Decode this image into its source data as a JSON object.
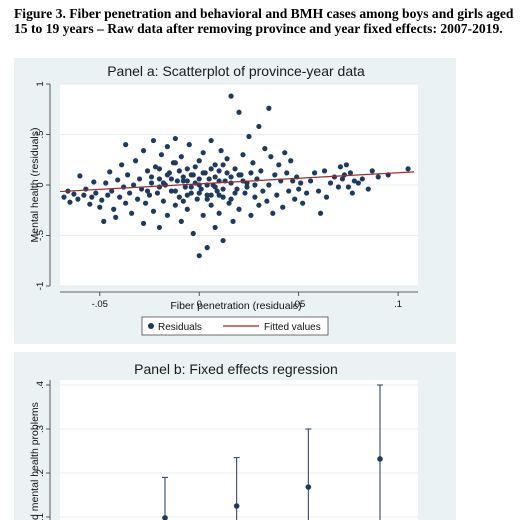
{
  "caption": "Figure 3. Fiber penetration and behavioral and BMH cases among boys and girls aged 15 to 19 years – Raw data after removing province and year fixed effects: 2007-2019.",
  "chart_data": [
    {
      "type": "scatter",
      "title": "Panel a: Scatterplot of province-year data",
      "xlabel": "Fiber penetration (residuals)",
      "ylabel": "Mental health (residuals)",
      "xlim": [
        -0.07,
        0.11
      ],
      "ylim": [
        -1,
        1
      ],
      "xticks": [
        -0.05,
        0,
        0.05,
        0.1
      ],
      "xtick_labels": [
        "-.05",
        "0",
        ".05",
        ".1"
      ],
      "yticks": [
        -1,
        -0.5,
        0,
        0.5,
        1
      ],
      "ytick_labels": [
        "-1",
        "-.5",
        "0",
        ".5",
        "1"
      ],
      "grid": "horizontal",
      "legend_position": "bottom",
      "series": [
        {
          "name": "Residuals",
          "marker": "dot",
          "color": "#1f3a5f",
          "points": [
            [
              -0.068,
              -0.12
            ],
            [
              -0.066,
              -0.06
            ],
            [
              -0.065,
              -0.17
            ],
            [
              -0.063,
              -0.09
            ],
            [
              -0.061,
              -0.14
            ],
            [
              -0.06,
              0.09
            ],
            [
              -0.058,
              -0.1
            ],
            [
              -0.057,
              -0.04
            ],
            [
              -0.055,
              -0.19
            ],
            [
              -0.054,
              -0.12
            ],
            [
              -0.053,
              0.03
            ],
            [
              -0.052,
              -0.08
            ],
            [
              -0.05,
              -0.22
            ],
            [
              -0.049,
              -0.15
            ],
            [
              -0.048,
              -0.36
            ],
            [
              -0.047,
              0.02
            ],
            [
              -0.046,
              -0.1
            ],
            [
              -0.045,
              0.13
            ],
            [
              -0.044,
              -0.06
            ],
            [
              -0.043,
              -0.24
            ],
            [
              -0.042,
              -0.32
            ],
            [
              -0.041,
              0.05
            ],
            [
              -0.04,
              -0.12
            ],
            [
              -0.039,
              0.2
            ],
            [
              -0.038,
              -0.02
            ],
            [
              -0.037,
              0.4
            ],
            [
              -0.037,
              -0.18
            ],
            [
              -0.036,
              0.1
            ],
            [
              -0.035,
              -0.08
            ],
            [
              -0.034,
              -0.28
            ],
            [
              -0.033,
              0.0
            ],
            [
              -0.032,
              0.24
            ],
            [
              -0.031,
              -0.14
            ],
            [
              -0.03,
              0.06
            ],
            [
              -0.029,
              -0.04
            ],
            [
              -0.028,
              -0.38
            ],
            [
              -0.028,
              0.34
            ],
            [
              -0.027,
              -0.18
            ],
            [
              -0.026,
              0.14
            ],
            [
              -0.025,
              -0.1
            ],
            [
              -0.024,
              0.02
            ],
            [
              -0.023,
              -0.26
            ],
            [
              -0.023,
              0.44
            ],
            [
              -0.022,
              0.18
            ],
            [
              -0.021,
              -0.08
            ],
            [
              -0.02,
              0.06
            ],
            [
              -0.02,
              -0.42
            ],
            [
              -0.019,
              0.3
            ],
            [
              -0.018,
              -0.16
            ],
            [
              -0.017,
              0.0
            ],
            [
              -0.016,
              0.38
            ],
            [
              -0.016,
              -0.3
            ],
            [
              -0.015,
              0.12
            ],
            [
              -0.014,
              -0.06
            ],
            [
              -0.013,
              0.22
            ],
            [
              -0.012,
              -0.2
            ],
            [
              -0.012,
              0.46
            ],
            [
              -0.011,
              0.04
            ],
            [
              -0.01,
              -0.12
            ],
            [
              -0.009,
              0.28
            ],
            [
              -0.009,
              -0.36
            ],
            [
              -0.008,
              0.08
            ],
            [
              -0.007,
              -0.02
            ],
            [
              -0.006,
              0.16
            ],
            [
              -0.006,
              -0.24
            ],
            [
              -0.005,
              0.4
            ],
            [
              -0.004,
              -0.08
            ],
            [
              -0.003,
              0.1
            ],
            [
              -0.003,
              -0.48
            ],
            [
              -0.002,
              0.02
            ],
            [
              -0.001,
              -0.14
            ],
            [
              0.0,
              0.24
            ],
            [
              0.0,
              -0.7
            ],
            [
              0.001,
              -0.04
            ],
            [
              0.002,
              0.32
            ],
            [
              0.002,
              -0.3
            ],
            [
              0.003,
              0.12
            ],
            [
              0.004,
              -0.1
            ],
            [
              0.004,
              -0.62
            ],
            [
              0.005,
              0.06
            ],
            [
              0.006,
              0.44
            ],
            [
              0.006,
              -0.2
            ],
            [
              0.007,
              0.0
            ],
            [
              0.008,
              0.2
            ],
            [
              0.008,
              -0.42
            ],
            [
              0.009,
              -0.06
            ],
            [
              0.01,
              0.14
            ],
            [
              0.01,
              -0.28
            ],
            [
              0.011,
              0.34
            ],
            [
              0.012,
              -0.12
            ],
            [
              0.012,
              -0.55
            ],
            [
              0.013,
              0.04
            ],
            [
              0.014,
              0.26
            ],
            [
              0.015,
              -0.18
            ],
            [
              0.016,
              0.08
            ],
            [
              0.016,
              0.88
            ],
            [
              0.017,
              -0.36
            ],
            [
              0.018,
              0.16
            ],
            [
              0.019,
              -0.04
            ],
            [
              0.02,
              0.72
            ],
            [
              0.02,
              -0.24
            ],
            [
              0.021,
              0.1
            ],
            [
              0.022,
              0.3
            ],
            [
              0.023,
              -0.08
            ],
            [
              0.024,
              0.02
            ],
            [
              0.025,
              0.48
            ],
            [
              0.026,
              -0.3
            ],
            [
              0.027,
              0.22
            ],
            [
              0.028,
              -0.12
            ],
            [
              0.029,
              0.06
            ],
            [
              0.03,
              0.58
            ],
            [
              0.03,
              -0.2
            ],
            [
              0.031,
              0.14
            ],
            [
              0.032,
              -0.06
            ],
            [
              0.033,
              0.36
            ],
            [
              0.034,
              -0.16
            ],
            [
              0.035,
              0.76
            ],
            [
              0.035,
              0.0
            ],
            [
              0.036,
              0.28
            ],
            [
              0.037,
              -0.28
            ],
            [
              0.038,
              0.1
            ],
            [
              0.039,
              -0.1
            ],
            [
              0.04,
              0.2
            ],
            [
              0.041,
              0.04
            ],
            [
              0.042,
              -0.22
            ],
            [
              0.043,
              0.32
            ],
            [
              0.044,
              0.12
            ],
            [
              0.045,
              -0.06
            ],
            [
              0.046,
              0.24
            ],
            [
              0.047,
              0.04
            ],
            [
              0.048,
              -0.14
            ],
            [
              0.049,
              0.08
            ],
            [
              0.05,
              -0.04
            ],
            [
              0.051,
              0.02
            ],
            [
              0.052,
              -0.18
            ],
            [
              0.054,
              -0.08
            ],
            [
              0.056,
              0.04
            ],
            [
              0.058,
              0.12
            ],
            [
              0.06,
              -0.06
            ],
            [
              0.061,
              -0.28
            ],
            [
              0.063,
              0.14
            ],
            [
              0.064,
              -0.12
            ],
            [
              0.066,
              0.02
            ],
            [
              0.068,
              0.08
            ],
            [
              0.07,
              -0.02
            ],
            [
              0.071,
              0.18
            ],
            [
              0.072,
              0.06
            ],
            [
              0.073,
              0.1
            ],
            [
              0.074,
              0.2
            ],
            [
              0.075,
              -0.02
            ],
            [
              0.076,
              0.12
            ],
            [
              0.077,
              -0.08
            ],
            [
              0.078,
              0.04
            ],
            [
              0.08,
              0.02
            ],
            [
              0.082,
              0.06
            ],
            [
              0.085,
              -0.04
            ],
            [
              0.087,
              0.14
            ],
            [
              0.09,
              0.08
            ],
            [
              0.095,
              0.1
            ],
            [
              0.105,
              0.16
            ]
          ],
          "cluster": [
            [
              -0.008,
              0.04
            ],
            [
              -0.004,
              -0.02
            ],
            [
              0.0,
              0.06
            ],
            [
              0.004,
              0.0
            ],
            [
              0.008,
              0.08
            ],
            [
              0.012,
              -0.04
            ],
            [
              0.016,
              0.02
            ],
            [
              -0.012,
              -0.06
            ],
            [
              -0.016,
              0.1
            ],
            [
              -0.02,
              -0.02
            ],
            [
              0.002,
              0.12
            ],
            [
              0.006,
              -0.1
            ],
            [
              0.01,
              0.04
            ],
            [
              0.014,
              0.12
            ],
            [
              -0.006,
              -0.1
            ],
            [
              -0.01,
              0.14
            ],
            [
              0.018,
              -0.08
            ],
            [
              0.022,
              0.04
            ],
            [
              -0.018,
              0.02
            ],
            [
              0.0,
              -0.08
            ],
            [
              -0.014,
              0.06
            ],
            [
              0.02,
              0.1
            ],
            [
              0.024,
              -0.02
            ],
            [
              -0.024,
              0.08
            ],
            [
              -0.002,
              0.18
            ],
            [
              0.006,
              0.16
            ],
            [
              -0.008,
              -0.16
            ],
            [
              0.012,
              0.2
            ],
            [
              0.004,
              -0.14
            ],
            [
              -0.012,
              0.22
            ],
            [
              0.016,
              -0.14
            ],
            [
              -0.02,
              0.16
            ],
            [
              0.026,
              0.12
            ],
            [
              -0.026,
              -0.06
            ],
            [
              0.028,
              0.0
            ],
            [
              -0.004,
              0.1
            ],
            [
              0.008,
              -0.02
            ],
            [
              0.0,
              0.0
            ],
            [
              0.01,
              -0.1
            ],
            [
              -0.006,
              0.04
            ]
          ]
        },
        {
          "name": "Fitted values",
          "type": "line",
          "color": "#9e2a2b",
          "points": [
            [
              -0.07,
              -0.065
            ],
            [
              0.108,
              0.13
            ]
          ]
        }
      ]
    },
    {
      "type": "errorbar",
      "title": "Panel b: Fixed effects regression",
      "ylabel": "d mental health problems",
      "ylim": [
        0.1,
        0.4
      ],
      "yticks": [
        0.1,
        0.2,
        0.3,
        0.4
      ],
      "ytick_labels": [
        ".1",
        ".2",
        ".3",
        ".4"
      ],
      "grid": "horizontal",
      "color": "#1f3a5f",
      "estimates": [
        {
          "estimate": 0.098,
          "lower": 0.09,
          "upper": 0.19
        },
        {
          "estimate": 0.125,
          "lower": 0.09,
          "upper": 0.235
        },
        {
          "estimate": 0.168,
          "lower": 0.09,
          "upper": 0.3
        },
        {
          "estimate": 0.232,
          "lower": 0.09,
          "upper": 0.4
        }
      ]
    }
  ]
}
